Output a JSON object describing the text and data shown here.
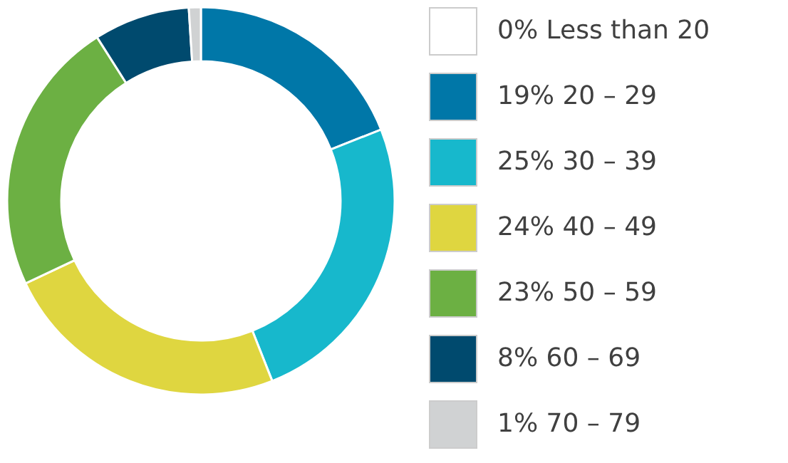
{
  "chart_data": {
    "type": "donut",
    "categories": [
      "Less than 20",
      "20 – 29",
      "30 – 39",
      "40 – 49",
      "50 – 59",
      "60 – 69",
      "70 – 79"
    ],
    "values": [
      0,
      19,
      25,
      24,
      23,
      8,
      1
    ],
    "value_labels": [
      "0%",
      "19%",
      "25%",
      "24%",
      "23%",
      "8%",
      "1%"
    ],
    "colors": [
      "#ffffff",
      "#0077a8",
      "#17b8cc",
      "#dfd640",
      "#6cb043",
      "#004a6e",
      "#d0d2d3"
    ],
    "legend": "right"
  }
}
